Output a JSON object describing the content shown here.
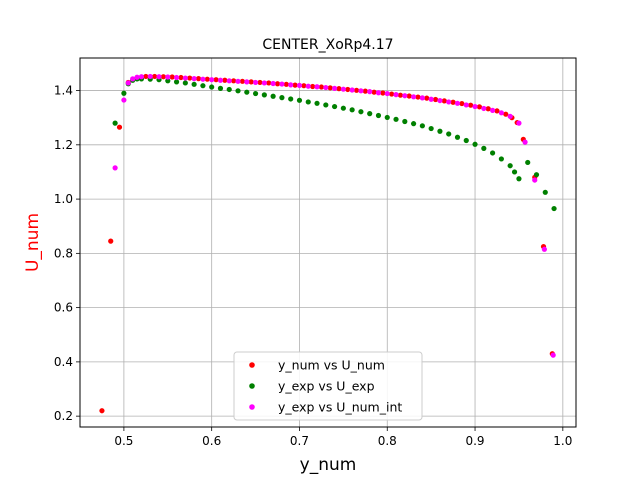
{
  "chart_data": {
    "type": "scatter",
    "title": "CENTER_XoRp4.17",
    "xlabel": "y_num",
    "ylabel": "U_num",
    "xlabel_color": "#000000",
    "ylabel_color": "#ff0000",
    "xlim": [
      0.45,
      1.015
    ],
    "ylim": [
      0.16,
      1.52
    ],
    "xticks": [
      0.5,
      0.6,
      0.7,
      0.8,
      0.9,
      1.0
    ],
    "xtick_labels": [
      "0.5",
      "0.6",
      "0.7",
      "0.8",
      "0.9",
      "1.0"
    ],
    "yticks": [
      0.2,
      0.4,
      0.6,
      0.8,
      1.0,
      1.2,
      1.4
    ],
    "ytick_labels": [
      "0.2",
      "0.4",
      "0.6",
      "0.8",
      "1.0",
      "1.2",
      "1.4"
    ],
    "grid": true,
    "legend_position": "lower-center",
    "series": [
      {
        "name": "y_num vs U_num",
        "color": "#ff0000",
        "points": [
          [
            0.475,
            0.22
          ],
          [
            0.485,
            0.845
          ],
          [
            0.495,
            1.265
          ],
          [
            0.505,
            1.43
          ],
          [
            0.515,
            1.445
          ],
          [
            0.525,
            1.452
          ],
          [
            0.535,
            1.452
          ],
          [
            0.545,
            1.451
          ],
          [
            0.555,
            1.45
          ],
          [
            0.565,
            1.448
          ],
          [
            0.575,
            1.446
          ],
          [
            0.585,
            1.444
          ],
          [
            0.595,
            1.442
          ],
          [
            0.605,
            1.44
          ],
          [
            0.615,
            1.438
          ],
          [
            0.625,
            1.436
          ],
          [
            0.635,
            1.434
          ],
          [
            0.645,
            1.432
          ],
          [
            0.655,
            1.43
          ],
          [
            0.665,
            1.428
          ],
          [
            0.675,
            1.425
          ],
          [
            0.685,
            1.423
          ],
          [
            0.695,
            1.42
          ],
          [
            0.705,
            1.418
          ],
          [
            0.715,
            1.415
          ],
          [
            0.725,
            1.413
          ],
          [
            0.735,
            1.41
          ],
          [
            0.745,
            1.407
          ],
          [
            0.755,
            1.404
          ],
          [
            0.765,
            1.401
          ],
          [
            0.775,
            1.398
          ],
          [
            0.785,
            1.394
          ],
          [
            0.795,
            1.391
          ],
          [
            0.805,
            1.387
          ],
          [
            0.815,
            1.383
          ],
          [
            0.825,
            1.38
          ],
          [
            0.835,
            1.376
          ],
          [
            0.845,
            1.372
          ],
          [
            0.855,
            1.367
          ],
          [
            0.865,
            1.362
          ],
          [
            0.875,
            1.357
          ],
          [
            0.885,
            1.352
          ],
          [
            0.895,
            1.346
          ],
          [
            0.905,
            1.34
          ],
          [
            0.915,
            1.333
          ],
          [
            0.925,
            1.325
          ],
          [
            0.935,
            1.313
          ],
          [
            0.942,
            1.3
          ],
          [
            0.948,
            1.282
          ],
          [
            0.955,
            1.22
          ],
          [
            0.968,
            1.08
          ],
          [
            0.978,
            0.825
          ],
          [
            0.988,
            0.43
          ]
        ]
      },
      {
        "name": "y_exp vs U_exp",
        "color": "#008000",
        "points": [
          [
            0.49,
            1.28
          ],
          [
            0.5,
            1.39
          ],
          [
            0.505,
            1.425
          ],
          [
            0.51,
            1.438
          ],
          [
            0.515,
            1.443
          ],
          [
            0.52,
            1.443
          ],
          [
            0.53,
            1.442
          ],
          [
            0.54,
            1.44
          ],
          [
            0.55,
            1.436
          ],
          [
            0.56,
            1.432
          ],
          [
            0.57,
            1.428
          ],
          [
            0.58,
            1.423
          ],
          [
            0.59,
            1.418
          ],
          [
            0.6,
            1.413
          ],
          [
            0.61,
            1.408
          ],
          [
            0.62,
            1.404
          ],
          [
            0.63,
            1.399
          ],
          [
            0.64,
            1.394
          ],
          [
            0.65,
            1.389
          ],
          [
            0.66,
            1.384
          ],
          [
            0.67,
            1.379
          ],
          [
            0.68,
            1.374
          ],
          [
            0.69,
            1.369
          ],
          [
            0.7,
            1.364
          ],
          [
            0.71,
            1.358
          ],
          [
            0.72,
            1.353
          ],
          [
            0.73,
            1.347
          ],
          [
            0.74,
            1.341
          ],
          [
            0.75,
            1.335
          ],
          [
            0.76,
            1.329
          ],
          [
            0.77,
            1.322
          ],
          [
            0.78,
            1.315
          ],
          [
            0.79,
            1.308
          ],
          [
            0.8,
            1.301
          ],
          [
            0.81,
            1.294
          ],
          [
            0.82,
            1.286
          ],
          [
            0.83,
            1.278
          ],
          [
            0.84,
            1.27
          ],
          [
            0.85,
            1.26
          ],
          [
            0.86,
            1.25
          ],
          [
            0.87,
            1.24
          ],
          [
            0.88,
            1.228
          ],
          [
            0.89,
            1.216
          ],
          [
            0.9,
            1.202
          ],
          [
            0.91,
            1.187
          ],
          [
            0.92,
            1.17
          ],
          [
            0.93,
            1.148
          ],
          [
            0.94,
            1.123
          ],
          [
            0.945,
            1.1
          ],
          [
            0.95,
            1.075
          ],
          [
            0.96,
            1.135
          ],
          [
            0.97,
            1.09
          ],
          [
            0.98,
            1.025
          ],
          [
            0.99,
            0.965
          ]
        ]
      },
      {
        "name": "y_exp vs U_num_int",
        "color": "#ff00ff",
        "points": [
          [
            0.49,
            1.115
          ],
          [
            0.5,
            1.365
          ],
          [
            0.505,
            1.428
          ],
          [
            0.51,
            1.443
          ],
          [
            0.515,
            1.449
          ],
          [
            0.52,
            1.451
          ],
          [
            0.53,
            1.452
          ],
          [
            0.54,
            1.451
          ],
          [
            0.55,
            1.45
          ],
          [
            0.56,
            1.448
          ],
          [
            0.57,
            1.446
          ],
          [
            0.58,
            1.444
          ],
          [
            0.59,
            1.442
          ],
          [
            0.6,
            1.44
          ],
          [
            0.61,
            1.438
          ],
          [
            0.62,
            1.436
          ],
          [
            0.63,
            1.434
          ],
          [
            0.64,
            1.432
          ],
          [
            0.65,
            1.43
          ],
          [
            0.66,
            1.428
          ],
          [
            0.67,
            1.426
          ],
          [
            0.68,
            1.424
          ],
          [
            0.69,
            1.421
          ],
          [
            0.7,
            1.419
          ],
          [
            0.71,
            1.416
          ],
          [
            0.72,
            1.414
          ],
          [
            0.73,
            1.411
          ],
          [
            0.74,
            1.408
          ],
          [
            0.75,
            1.405
          ],
          [
            0.76,
            1.402
          ],
          [
            0.77,
            1.399
          ],
          [
            0.78,
            1.396
          ],
          [
            0.79,
            1.392
          ],
          [
            0.8,
            1.389
          ],
          [
            0.81,
            1.385
          ],
          [
            0.82,
            1.381
          ],
          [
            0.83,
            1.377
          ],
          [
            0.84,
            1.373
          ],
          [
            0.85,
            1.368
          ],
          [
            0.86,
            1.363
          ],
          [
            0.87,
            1.358
          ],
          [
            0.88,
            1.353
          ],
          [
            0.89,
            1.347
          ],
          [
            0.9,
            1.341
          ],
          [
            0.91,
            1.334
          ],
          [
            0.92,
            1.327
          ],
          [
            0.93,
            1.318
          ],
          [
            0.94,
            1.305
          ],
          [
            0.95,
            1.28
          ],
          [
            0.957,
            1.21
          ],
          [
            0.968,
            1.07
          ],
          [
            0.979,
            0.815
          ],
          [
            0.989,
            0.425
          ]
        ]
      }
    ]
  }
}
